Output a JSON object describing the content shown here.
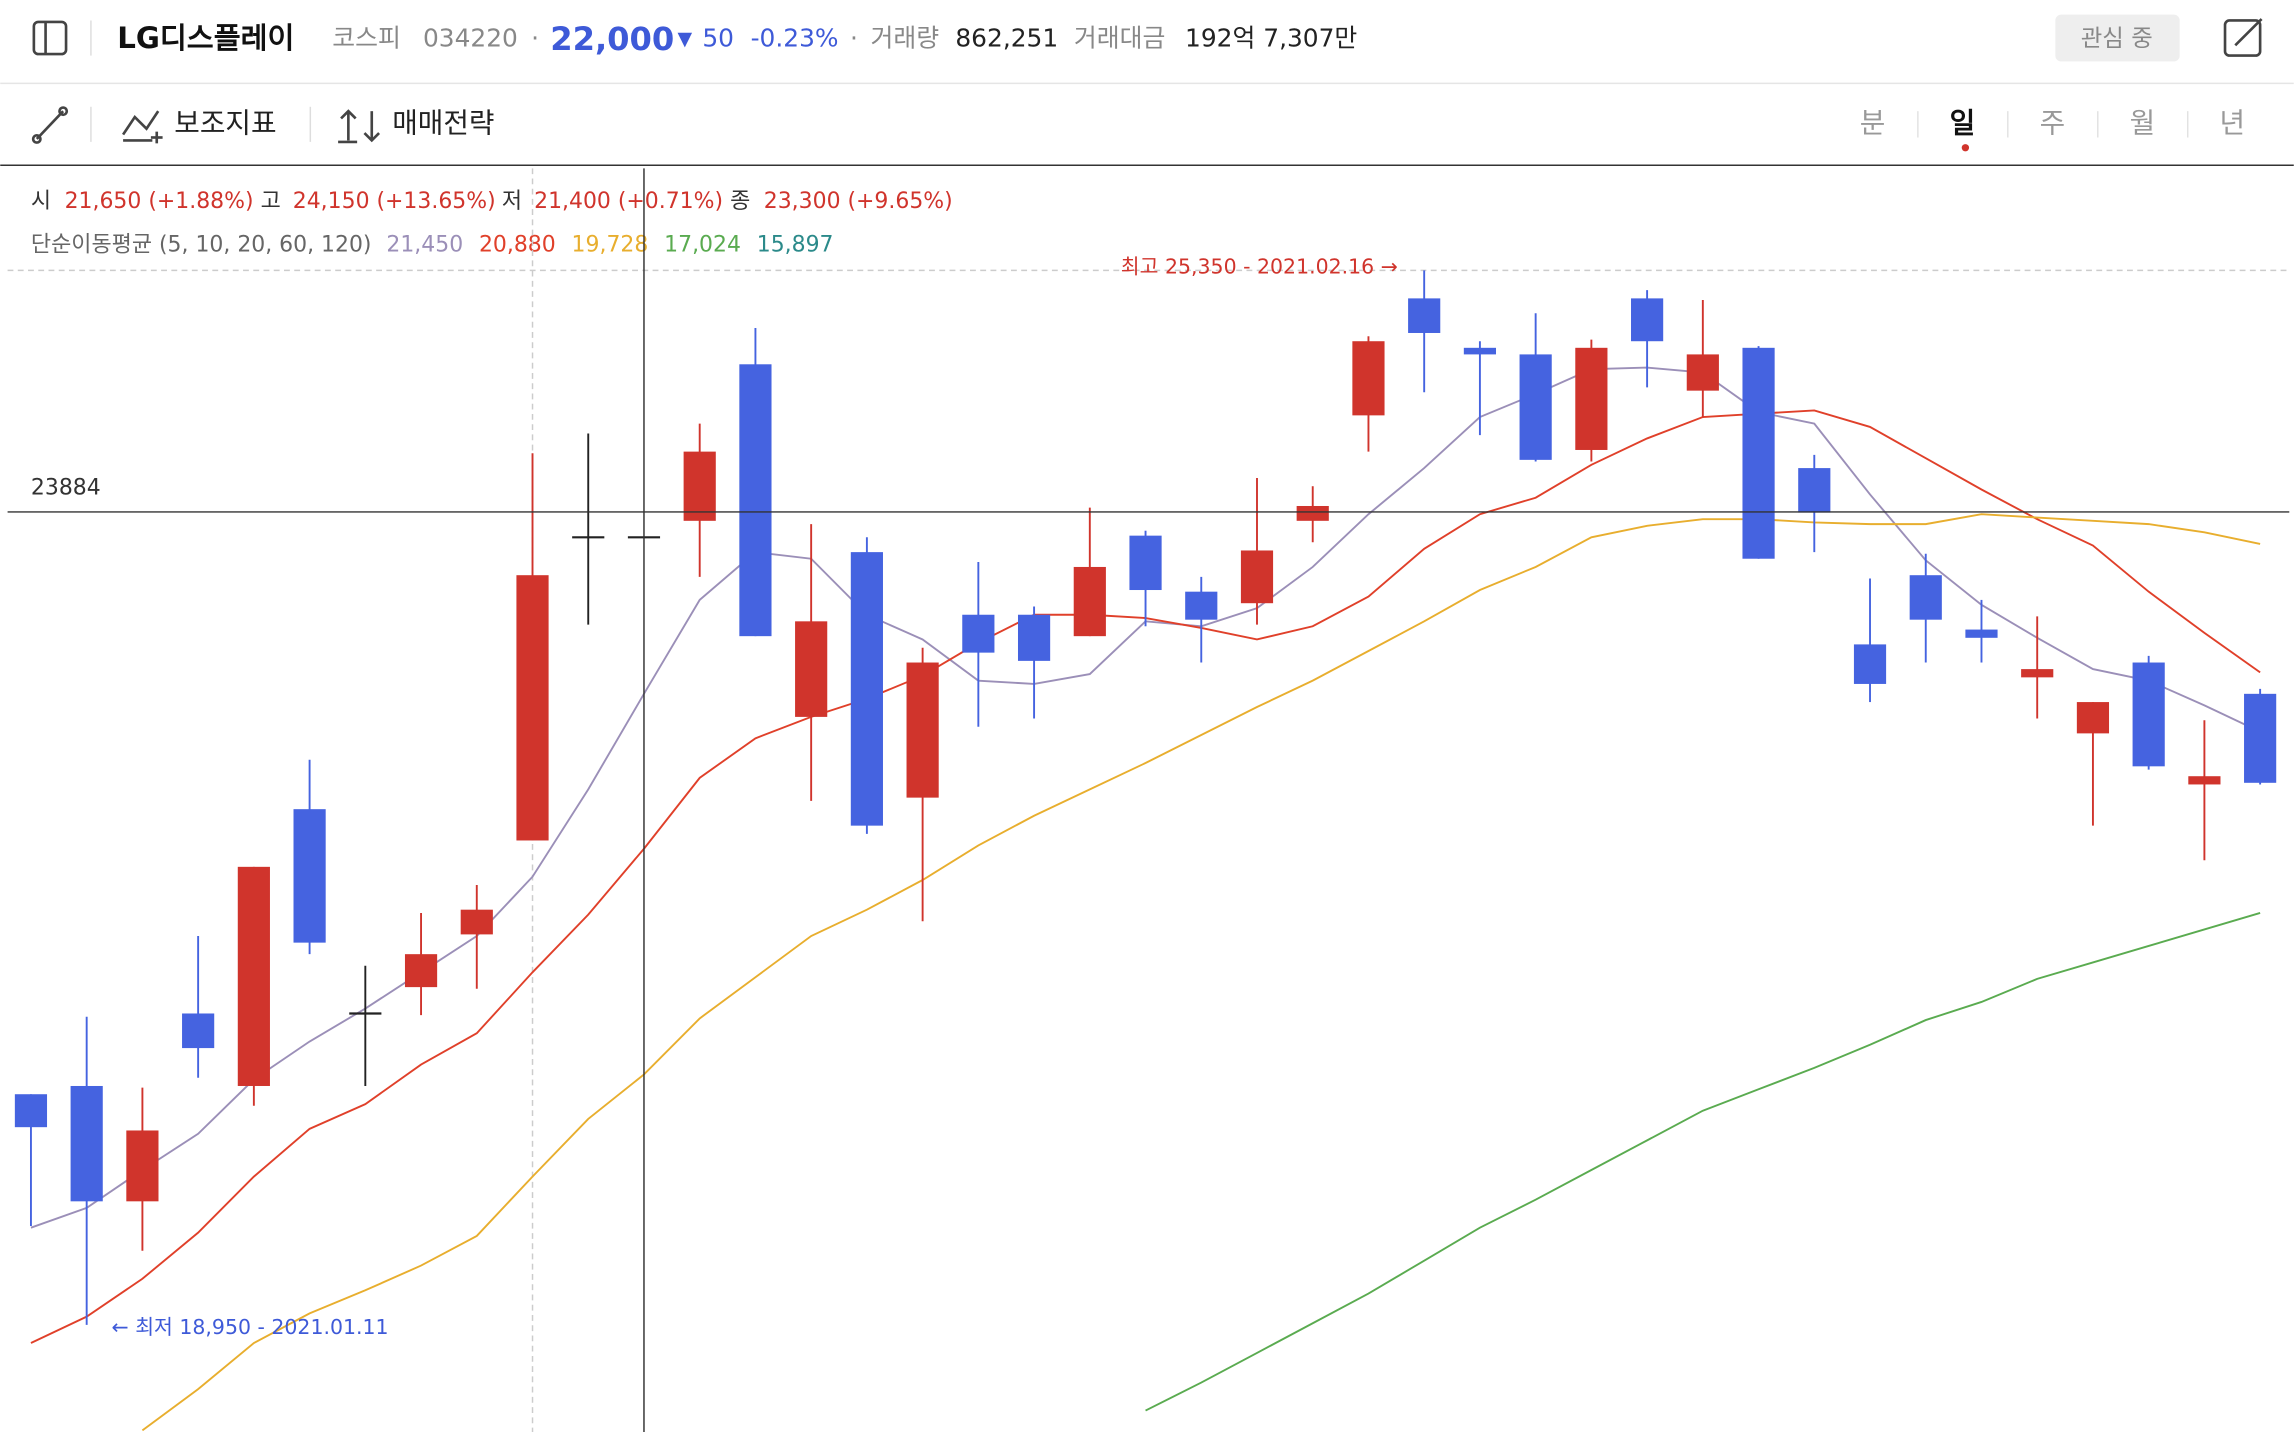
{
  "header": {
    "name": "LG디스플레이",
    "market": "코스피",
    "code": "034220",
    "separator": "·",
    "price": "22,000",
    "change_arrow": "▼",
    "change": "50",
    "change_pct": "-0.23%",
    "volume_label": "거래량",
    "volume": "862,251",
    "amount_label": "거래대금",
    "amount": "192억 7,307만",
    "watch_button": "관심 중"
  },
  "toolbar": {
    "indicators": "보조지표",
    "strategy": "매매전략",
    "periods": [
      "분",
      "일",
      "주",
      "월",
      "년"
    ],
    "active_period": 1
  },
  "info": {
    "items": [
      {
        "label": "시",
        "value": "21,650 (+1.88%)"
      },
      {
        "label": "고",
        "value": "24,150 (+13.65%)"
      },
      {
        "label": "저",
        "value": "21,400 (+0.71%)"
      },
      {
        "label": "종",
        "value": "23,300 (+9.65%)"
      }
    ],
    "ma_label": "단순이동평균 (5, 10, 20, 60, 120)",
    "ma_values": [
      {
        "text": "21,450",
        "color": "#9b8fb8"
      },
      {
        "text": "20,880",
        "color": "#e0402a"
      },
      {
        "text": "19,728",
        "color": "#e8ae2e"
      },
      {
        "text": "17,024",
        "color": "#5aab50"
      },
      {
        "text": "15,897",
        "color": "#2b8a8a"
      }
    ]
  },
  "chart_data": {
    "type": "candlestick",
    "up_color": "#d0342c",
    "down_color": "#4563e0",
    "flat_color": "#222222",
    "ylim": [
      18300,
      25970
    ],
    "open": [
      20350,
      20400,
      19700,
      20840,
      20400,
      22080,
      20840,
      21000,
      21320,
      21890,
      23730,
      23730,
      23830,
      24780,
      22640,
      23640,
      22150,
      23260,
      23260,
      23130,
      23740,
      23400,
      23330,
      23830,
      24470,
      25180,
      24880,
      24840,
      24260,
      25180,
      24620,
      24880,
      24150,
      23080,
      23500,
      23170,
      22880,
      22540,
      22970,
      22230,
      22780
    ],
    "high": [
      20350,
      20820,
      20390,
      21310,
      21730,
      22380,
      21130,
      21450,
      21620,
      24240,
      24360,
      23730,
      24420,
      25000,
      23810,
      23730,
      23060,
      23580,
      23310,
      23910,
      23770,
      23490,
      24090,
      24040,
      24950,
      25350,
      24920,
      25090,
      24930,
      25230,
      25170,
      24890,
      24230,
      23480,
      23630,
      23350,
      23250,
      22730,
      23010,
      22620,
      22810
    ],
    "low": [
      19550,
      18950,
      19400,
      20450,
      20280,
      21200,
      20400,
      20830,
      20990,
      21890,
      23200,
      23730,
      23490,
      23130,
      22130,
      21930,
      21400,
      22580,
      22630,
      23130,
      23190,
      22970,
      23200,
      23700,
      24250,
      24610,
      24350,
      24190,
      24190,
      24640,
      24460,
      23600,
      23640,
      22730,
      22970,
      22970,
      22630,
      21980,
      22320,
      21770,
      22230
    ],
    "close": [
      20150,
      19700,
      20130,
      20630,
      21730,
      21270,
      20840,
      21200,
      21470,
      23500,
      23730,
      23730,
      24250,
      23130,
      23220,
      21980,
      22970,
      23030,
      22980,
      23550,
      23410,
      23230,
      23650,
      23920,
      24920,
      24970,
      24840,
      24200,
      24880,
      24920,
      24840,
      23600,
      23880,
      22840,
      23230,
      23120,
      22930,
      22730,
      22340,
      22280,
      22240
    ],
    "ma_series": [
      {
        "color": "#9b8fb8",
        "values": [
          19540,
          19660,
          19890,
          20110,
          20440,
          20670,
          20870,
          21090,
          21310,
          21670,
          22200,
          22780,
          23350,
          23640,
          23600,
          23260,
          23110,
          22860,
          22840,
          22900,
          23220,
          23190,
          23300,
          23550,
          23870,
          24150,
          24460,
          24600,
          24750,
          24760,
          24730,
          24490,
          24420,
          23990,
          23590,
          23320,
          23120,
          22930,
          22860,
          22710,
          22550
        ]
      },
      {
        "color": "#e0402a",
        "values": [
          18840,
          19000,
          19230,
          19510,
          19850,
          20140,
          20290,
          20530,
          20720,
          21090,
          21440,
          21840,
          22270,
          22510,
          22640,
          22750,
          22890,
          23090,
          23260,
          23260,
          23240,
          23180,
          23110,
          23190,
          23370,
          23660,
          23870,
          23970,
          24170,
          24330,
          24460,
          24480,
          24500,
          24400,
          24210,
          24020,
          23840,
          23680,
          23400,
          23150,
          22910
        ]
      },
      {
        "color": "#e8ae2e",
        "values": [
          null,
          null,
          18310,
          18560,
          18840,
          19020,
          19160,
          19310,
          19490,
          19850,
          20200,
          20470,
          20810,
          21060,
          21310,
          21470,
          21650,
          21860,
          22040,
          22200,
          22360,
          22530,
          22700,
          22860,
          23040,
          23220,
          23410,
          23550,
          23730,
          23800,
          23840,
          23840,
          23820,
          23810,
          23810,
          23870,
          23850,
          23830,
          23810,
          23760,
          23690
        ]
      },
      {
        "color": "#5aab50",
        "values": [
          null,
          null,
          null,
          null,
          null,
          null,
          null,
          null,
          null,
          null,
          null,
          null,
          null,
          null,
          null,
          null,
          null,
          null,
          null,
          null,
          18430,
          18600,
          18780,
          18960,
          19140,
          19340,
          19540,
          19710,
          19890,
          20070,
          20250,
          20380,
          20510,
          20650,
          20800,
          20910,
          21050,
          21150,
          21250,
          21350,
          21450
        ]
      }
    ],
    "crosshair_value": 23884,
    "high_annotation": "최고 25,350 - 2021.02.16 →",
    "low_annotation": "← 최저 18,950 - 2021.01.11"
  }
}
